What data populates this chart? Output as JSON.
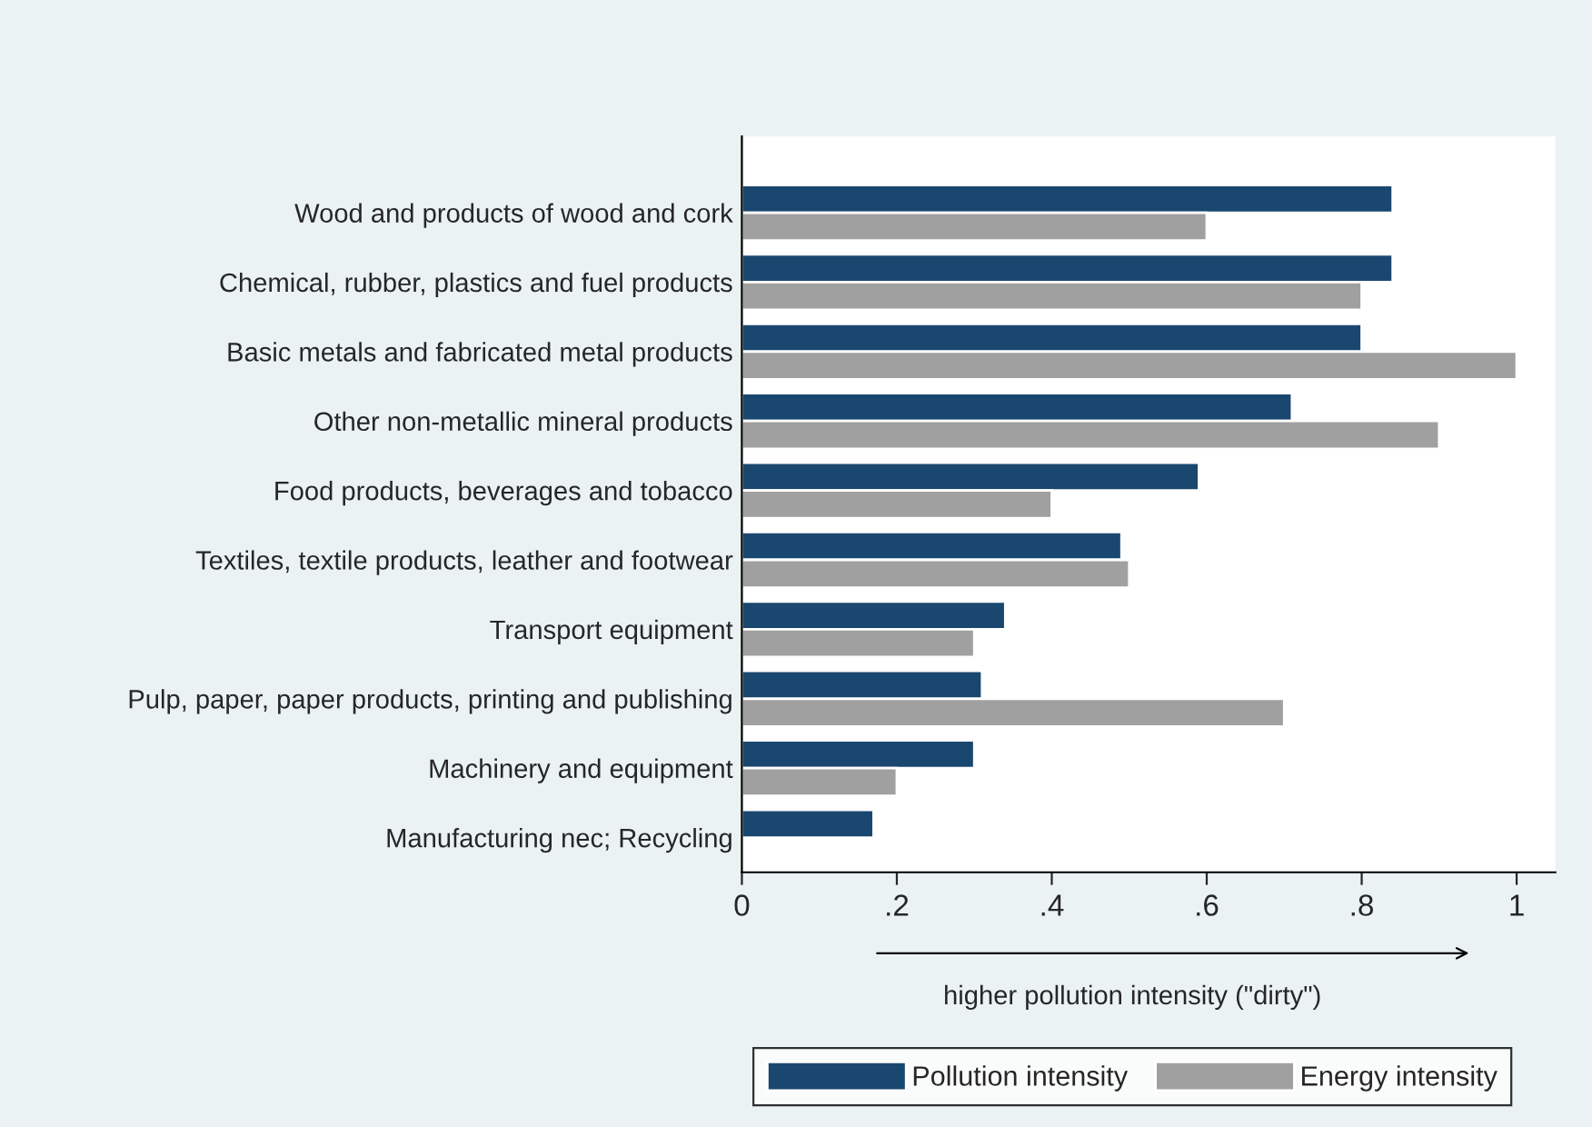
{
  "chart_data": {
    "type": "bar",
    "orientation": "horizontal",
    "categories": [
      "Wood and products of wood and cork",
      "Chemical, rubber, plastics and fuel products",
      "Basic metals and fabricated metal products",
      "Other non-metallic mineral products",
      "Food products, beverages and tobacco",
      "Textiles, textile products, leather and footwear",
      "Transport equipment",
      "Pulp, paper, paper products, printing and publishing",
      "Machinery and equipment",
      "Manufacturing nec; Recycling"
    ],
    "series": [
      {
        "name": "Pollution intensity",
        "color": "#1a476f",
        "values": [
          0.84,
          0.84,
          0.8,
          0.71,
          0.59,
          0.49,
          0.34,
          0.31,
          0.3,
          0.17
        ]
      },
      {
        "name": "Energy intensity",
        "color": "#a0a0a0",
        "values": [
          0.6,
          0.8,
          1.0,
          0.9,
          0.4,
          0.5,
          0.3,
          0.7,
          0.2,
          null
        ]
      }
    ],
    "xlim": [
      0,
      1.05
    ],
    "xticks": [
      0,
      {
        "value": 0.2,
        "label": ".2"
      },
      {
        "value": 0.4,
        "label": ".4"
      },
      {
        "value": 0.6,
        "label": ".6"
      },
      {
        "value": 0.8,
        "label": ".8"
      },
      1
    ],
    "annotations": [
      "higher pollution intensity (\"dirty\")"
    ],
    "legend": "bottom",
    "grid": false
  }
}
